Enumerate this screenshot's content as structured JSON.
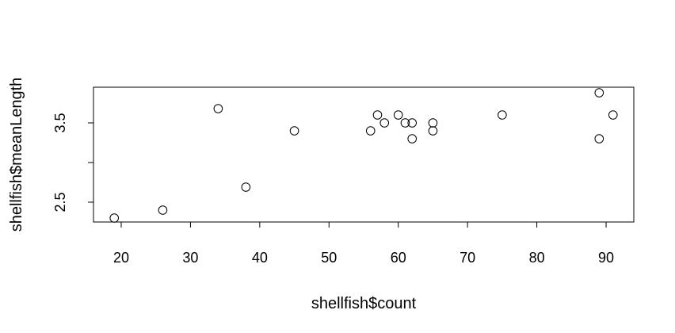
{
  "chart_data": {
    "type": "scatter",
    "title": "",
    "xlabel": "shellfish$count",
    "ylabel": "shellfish$meanLength",
    "xlim": [
      16,
      94
    ],
    "ylim": [
      2.25,
      3.95
    ],
    "x_ticks": [
      20,
      30,
      40,
      50,
      60,
      70,
      80,
      90
    ],
    "y_ticks": [
      2.5,
      3.0,
      3.5
    ],
    "y_tick_labels": [
      "2.5",
      "",
      "3.5"
    ],
    "grid": false,
    "marker": "open-circle",
    "colors": {
      "points": "#000000",
      "axes": "#000000",
      "background": "#ffffff"
    },
    "series": [
      {
        "points": [
          {
            "x": 19,
            "y": 2.3
          },
          {
            "x": 26,
            "y": 2.4
          },
          {
            "x": 34,
            "y": 3.68
          },
          {
            "x": 38,
            "y": 2.69
          },
          {
            "x": 45,
            "y": 3.4
          },
          {
            "x": 56,
            "y": 3.4
          },
          {
            "x": 57,
            "y": 3.6
          },
          {
            "x": 58,
            "y": 3.5
          },
          {
            "x": 60,
            "y": 3.6
          },
          {
            "x": 61,
            "y": 3.5
          },
          {
            "x": 62,
            "y": 3.5
          },
          {
            "x": 62,
            "y": 3.3
          },
          {
            "x": 65,
            "y": 3.5
          },
          {
            "x": 65,
            "y": 3.4
          },
          {
            "x": 75,
            "y": 3.6
          },
          {
            "x": 89,
            "y": 3.88
          },
          {
            "x": 89,
            "y": 3.3
          },
          {
            "x": 91,
            "y": 3.6
          }
        ]
      }
    ]
  }
}
